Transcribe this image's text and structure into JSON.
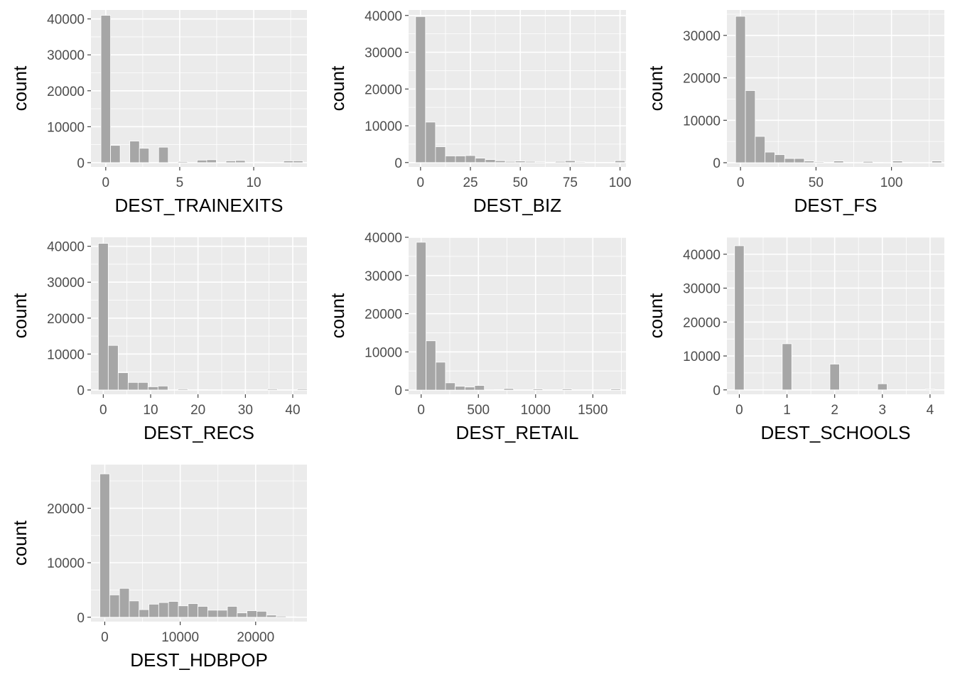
{
  "chart_data": [
    {
      "type": "bar",
      "title": "",
      "xlabel": "DEST_TRAINEXITS",
      "ylabel": "count",
      "xlim": [
        -1.0,
        13.6
      ],
      "ylim": [
        -1200,
        42500
      ],
      "xticks": [
        0,
        5,
        10
      ],
      "xtick_labels": [
        "0",
        "5",
        "10"
      ],
      "yticks": [
        0,
        10000,
        20000,
        30000,
        40000
      ],
      "ytick_labels": [
        "0",
        "10000",
        "20000",
        "30000",
        "40000"
      ],
      "grid": true,
      "bin_width": 0.65,
      "bin_centers": [
        0,
        0.65,
        1.3,
        1.95,
        2.6,
        3.25,
        3.9,
        4.55,
        5.2,
        5.85,
        6.5,
        7.15,
        7.8,
        8.45,
        9.1,
        9.75,
        10.4,
        11.05,
        11.7,
        12.35,
        13.0
      ],
      "values": [
        41000,
        4800,
        0,
        6000,
        4000,
        0,
        4300,
        0,
        300,
        0,
        700,
        800,
        0,
        500,
        600,
        0,
        150,
        100,
        0,
        500,
        500
      ]
    },
    {
      "type": "bar",
      "title": "",
      "xlabel": "DEST_BIZ",
      "ylabel": "count",
      "xlim": [
        -6,
        103
      ],
      "ylim": [
        -1200,
        41500
      ],
      "xticks": [
        0,
        25,
        50,
        75,
        100
      ],
      "xtick_labels": [
        "0",
        "25",
        "50",
        "75",
        "100"
      ],
      "yticks": [
        0,
        10000,
        20000,
        30000,
        40000
      ],
      "ytick_labels": [
        "0",
        "10000",
        "20000",
        "30000",
        "40000"
      ],
      "grid": true,
      "bin_width": 5,
      "bin_centers": [
        0,
        5,
        10,
        15,
        20,
        25,
        30,
        35,
        40,
        45,
        50,
        55,
        60,
        65,
        70,
        75,
        80,
        85,
        90,
        95,
        100
      ],
      "values": [
        39700,
        11000,
        4300,
        1800,
        1800,
        1900,
        1200,
        800,
        500,
        300,
        400,
        300,
        200,
        100,
        300,
        500,
        200,
        100,
        0,
        0,
        500
      ]
    },
    {
      "type": "bar",
      "title": "",
      "xlabel": "DEST_FS",
      "ylabel": "count",
      "xlim": [
        -9,
        135
      ],
      "ylim": [
        -1000,
        36000
      ],
      "xticks": [
        0,
        50,
        100
      ],
      "xtick_labels": [
        "0",
        "50",
        "100"
      ],
      "yticks": [
        0,
        10000,
        20000,
        30000
      ],
      "ytick_labels": [
        "0",
        "10000",
        "20000",
        "30000"
      ],
      "grid": true,
      "bin_width": 6.5,
      "bin_centers": [
        0,
        6.5,
        13,
        19.5,
        26,
        32.5,
        39,
        45.5,
        52,
        58.5,
        65,
        71.5,
        78,
        84.5,
        91,
        97.5,
        104,
        110.5,
        117,
        123.5,
        130
      ],
      "values": [
        34500,
        17000,
        6200,
        2500,
        1900,
        1000,
        1000,
        400,
        200,
        100,
        400,
        100,
        0,
        300,
        100,
        0,
        400,
        100,
        0,
        0,
        400
      ]
    },
    {
      "type": "bar",
      "title": "",
      "xlabel": "DEST_RECS",
      "ylabel": "count",
      "xlim": [
        -2.6,
        43
      ],
      "ylim": [
        -1200,
        42500
      ],
      "xticks": [
        0,
        10,
        20,
        30,
        40
      ],
      "xtick_labels": [
        "0",
        "10",
        "20",
        "30",
        "40"
      ],
      "yticks": [
        0,
        10000,
        20000,
        30000,
        40000
      ],
      "ytick_labels": [
        "0",
        "10000",
        "20000",
        "30000",
        "40000"
      ],
      "grid": true,
      "bin_width": 2.1,
      "bin_centers": [
        0,
        2.1,
        4.2,
        6.3,
        8.4,
        10.5,
        12.6,
        14.7,
        16.8,
        18.9,
        21,
        23.1,
        25.2,
        27.3,
        29.4,
        31.5,
        33.6,
        35.7,
        37.8,
        39.9,
        42
      ],
      "values": [
        40800,
        12400,
        4800,
        2100,
        2100,
        900,
        1100,
        0,
        300,
        0,
        100,
        0,
        0,
        0,
        0,
        0,
        0,
        300,
        0,
        0,
        300
      ]
    },
    {
      "type": "bar",
      "title": "",
      "xlabel": "DEST_RETAIL",
      "ylabel": "count",
      "xlim": [
        -110,
        1790
      ],
      "ylim": [
        -1100,
        40000
      ],
      "xticks": [
        0,
        500,
        1000,
        1500
      ],
      "xtick_labels": [
        "0",
        "500",
        "1000",
        "1500"
      ],
      "yticks": [
        0,
        10000,
        20000,
        30000,
        40000
      ],
      "ytick_labels": [
        "0",
        "10000",
        "20000",
        "30000",
        "40000"
      ],
      "grid": true,
      "bin_width": 85,
      "bin_centers": [
        0,
        85,
        170,
        255,
        340,
        425,
        510,
        595,
        680,
        765,
        850,
        935,
        1020,
        1105,
        1190,
        1275,
        1360,
        1445,
        1530,
        1615,
        1700
      ],
      "values": [
        38700,
        12900,
        7300,
        1900,
        1000,
        800,
        1200,
        0,
        100,
        400,
        0,
        0,
        300,
        0,
        0,
        300,
        0,
        0,
        0,
        0,
        300
      ]
    },
    {
      "type": "bar",
      "title": "",
      "xlabel": "DEST_SCHOOLS",
      "ylabel": "count",
      "xlim": [
        -0.26,
        4.3
      ],
      "ylim": [
        -1300,
        45000
      ],
      "xticks": [
        0,
        1,
        2,
        3,
        4
      ],
      "xtick_labels": [
        "0",
        "1",
        "2",
        "3",
        "4"
      ],
      "yticks": [
        0,
        10000,
        20000,
        30000,
        40000
      ],
      "ytick_labels": [
        "0",
        "10000",
        "20000",
        "30000",
        "40000"
      ],
      "grid": true,
      "bin_width": 0.2,
      "bin_centers": [
        0,
        0.2,
        0.4,
        0.6,
        0.8,
        1.0,
        1.2,
        1.4,
        1.6,
        1.8,
        2.0,
        2.2,
        2.4,
        2.6,
        2.8,
        3.0,
        3.2,
        3.4,
        3.6,
        3.8,
        4.0
      ],
      "values": [
        42500,
        0,
        0,
        0,
        0,
        13600,
        0,
        0,
        0,
        0,
        7600,
        0,
        0,
        0,
        0,
        1800,
        0,
        0,
        0,
        0,
        200
      ]
    },
    {
      "type": "bar",
      "title": "",
      "xlabel": "DEST_HDBPOP",
      "ylabel": "count",
      "xlim": [
        -1830,
        26800
      ],
      "ylim": [
        -800,
        28000
      ],
      "xticks": [
        0,
        10000,
        20000
      ],
      "xtick_labels": [
        "0",
        "10000",
        "20000"
      ],
      "yticks": [
        0,
        10000,
        20000
      ],
      "ytick_labels": [
        "0",
        "10000",
        "20000"
      ],
      "grid": true,
      "bin_width": 1300,
      "bin_centers": [
        0,
        1300,
        2600,
        3900,
        5200,
        6500,
        7800,
        9100,
        10400,
        11700,
        13000,
        14300,
        15600,
        16900,
        18200,
        19500,
        20800,
        22100,
        23400,
        24700
      ],
      "values": [
        26300,
        4100,
        5300,
        3000,
        1400,
        2400,
        2700,
        2900,
        2100,
        2500,
        2000,
        1300,
        1300,
        2000,
        800,
        1200,
        1100,
        400,
        200,
        100
      ]
    }
  ]
}
